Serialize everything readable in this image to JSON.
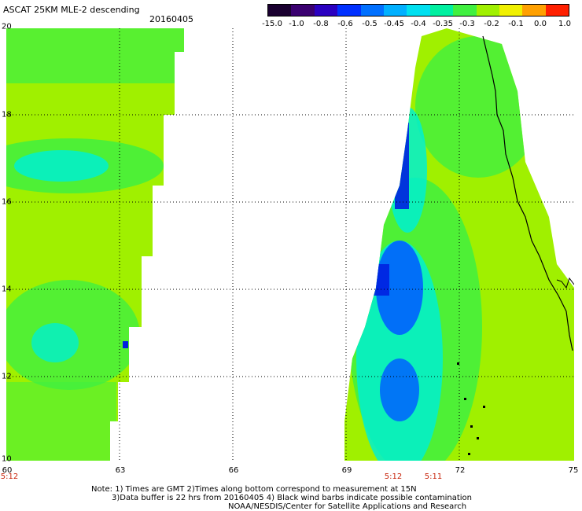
{
  "header": {
    "title": "ASCAT 25KM MLE-2 descending",
    "date": "20160405"
  },
  "colorbar": {
    "labels": [
      "-15.0",
      "-1.0",
      "-0.8",
      "-0.6",
      "-0.5",
      "-0.45",
      "-0.4",
      "-0.35",
      "-0.3",
      "-0.2",
      "-0.1",
      "0.0",
      "1.0"
    ],
    "colors": [
      "#1a0030",
      "#3a0070",
      "#2a00c0",
      "#0030ff",
      "#0070ff",
      "#00b0ff",
      "#00e0f0",
      "#00f0a0",
      "#40f040",
      "#a0f000",
      "#f0f000",
      "#ffa000",
      "#ff2000"
    ]
  },
  "axes": {
    "y_ticks": [
      "20",
      "18",
      "16",
      "14",
      "12",
      "10"
    ],
    "x_ticks": [
      "60",
      "63",
      "66",
      "69",
      "72",
      "75"
    ]
  },
  "pass_times": [
    {
      "label": "5:12"
    },
    {
      "label": "5:12"
    },
    {
      "label": "5:11"
    }
  ],
  "notes": {
    "line1": "Note: 1) Times are GMT 2)Times along bottom correspond to measurement at 15N",
    "line2": "3)Data buffer is 22 hrs from 20160405 4) Black wind barbs indicate possible contamination",
    "line3": "NOAA/NESDIS/Center for Satellite Applications and Research"
  },
  "map": {
    "lon_range": [
      60,
      75
    ],
    "lat_range": [
      10,
      20
    ],
    "swath_colors": {
      "base": "#a0f000",
      "green": "#40f040",
      "cyan": "#00f0d0",
      "blue": "#0060ff",
      "deep": "#0020e0"
    }
  }
}
